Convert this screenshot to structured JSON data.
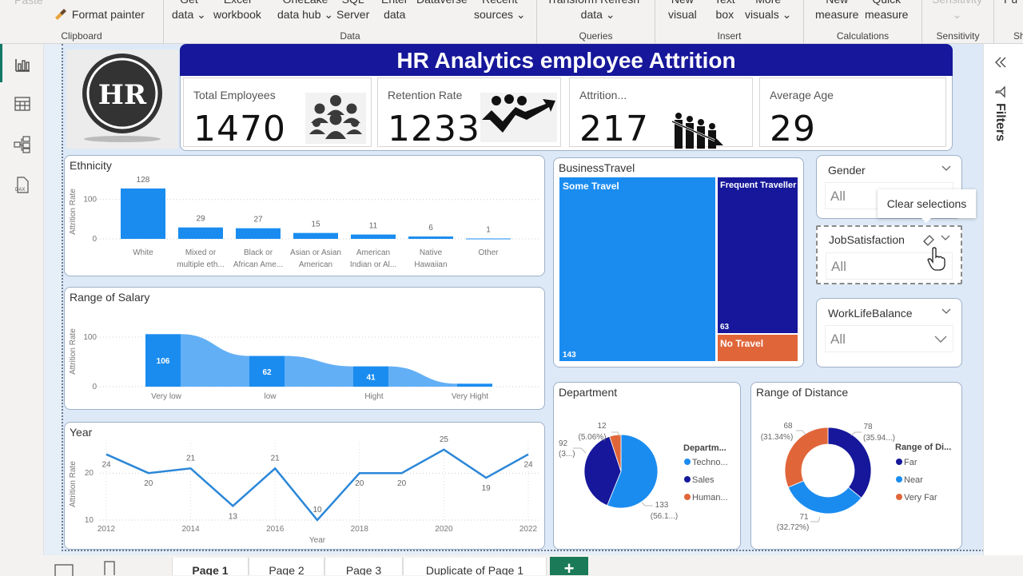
{
  "ribbon": {
    "groups": [
      {
        "label": "Clipboard",
        "buttons": [
          {
            "label": "Paste"
          },
          {
            "label": "Format painter"
          }
        ]
      },
      {
        "label": "Data",
        "buttons": [
          {
            "line1": "Get",
            "line2": "data ⌄"
          },
          {
            "line1": "Excel",
            "line2": "workbook"
          },
          {
            "line1": "OneLake",
            "line2": "data hub ⌄"
          },
          {
            "line1": "SQL",
            "line2": "Server"
          },
          {
            "line1": "Enter",
            "line2": "data"
          },
          {
            "line1": "Dataverse",
            "line2": ""
          },
          {
            "line1": "Recent",
            "line2": "sources ⌄"
          }
        ]
      },
      {
        "label": "Queries",
        "buttons": [
          {
            "line1": "Transform Refresh",
            "line2": "data ⌄"
          }
        ]
      },
      {
        "label": "Insert",
        "buttons": [
          {
            "line1": "New",
            "line2": "visual"
          },
          {
            "line1": "Text",
            "line2": "box"
          },
          {
            "line1": "More",
            "line2": "visuals ⌄"
          }
        ]
      },
      {
        "label": "Calculations",
        "buttons": [
          {
            "line1": "New",
            "line2": "measure"
          },
          {
            "line1": "Quick",
            "line2": "measure"
          }
        ]
      },
      {
        "label": "Sensitivity",
        "buttons": [
          {
            "line1": "Sensitivity",
            "line2": "⌄"
          }
        ]
      },
      {
        "label": "Sh",
        "buttons": [
          {
            "line1": "Pu",
            "line2": ""
          }
        ]
      }
    ]
  },
  "left_nav": {
    "items": [
      {
        "name": "report-view",
        "active": true
      },
      {
        "name": "table-view",
        "active": false
      },
      {
        "name": "model-view",
        "active": false
      },
      {
        "name": "dax-query-view",
        "active": false,
        "label": "DAX"
      }
    ]
  },
  "header": {
    "logo_text": "HR",
    "title": "HR Analytics employee Attrition"
  },
  "kpis": [
    {
      "label": "Total Employees",
      "value": "1470",
      "icon": "group-people-icon"
    },
    {
      "label": "Retention Rate",
      "value": "1233",
      "icon": "growth-arrow-icon"
    },
    {
      "label": "Attrition...",
      "value": "217",
      "icon": "decline-people-icon"
    },
    {
      "label": "Average Age",
      "value": "29",
      "icon": ""
    }
  ],
  "slicers": [
    {
      "title": "Gender",
      "value": "All"
    },
    {
      "title": "JobSatisfaction",
      "value": "All"
    },
    {
      "title": "WorkLifeBalance",
      "value": "All"
    }
  ],
  "tooltip": {
    "text": "Clear selections"
  },
  "filters_pane": {
    "label": "Filters"
  },
  "page_tabs": [
    {
      "label": "Page 1",
      "active": true
    },
    {
      "label": "Page 2",
      "active": false
    },
    {
      "label": "Page 3",
      "active": false
    },
    {
      "label": "Duplicate of Page 1",
      "active": false
    }
  ],
  "add_page_label": "+",
  "colors": {
    "primary_blue": "#1a8cf0",
    "navy": "#16179a",
    "orange": "#e0663a",
    "light_blue": "#62aff5"
  },
  "chart_data": [
    {
      "id": "ethnicity",
      "type": "bar",
      "title": "Ethnicity",
      "xlabel": "",
      "ylabel": "Attrition Rate",
      "categories": [
        "White",
        "Mixed or multiple eth...",
        "Black or African Ame...",
        "Asian or Asian American",
        "American Indian or Al...",
        "Native Hawaiian",
        "Other"
      ],
      "category_lines": [
        [
          "White"
        ],
        [
          "Mixed or",
          "multiple eth..."
        ],
        [
          "Black or",
          "African Ame..."
        ],
        [
          "Asian or Asian",
          "American"
        ],
        [
          "American",
          "Indian or Al..."
        ],
        [
          "Native",
          "Hawaiian"
        ],
        [
          "Other"
        ]
      ],
      "values": [
        128,
        29,
        27,
        15,
        11,
        6,
        1
      ],
      "yticks": [
        0,
        100
      ],
      "ylim": [
        0,
        140
      ],
      "grid": true
    },
    {
      "id": "salary",
      "type": "bar",
      "subtype": "ribbon",
      "title": "Range of Salary",
      "xlabel": "",
      "ylabel": "Attrition Rate",
      "categories": [
        "Very low",
        "low",
        "Hight",
        "Very Hight"
      ],
      "values": [
        106,
        62,
        41,
        6
      ],
      "data_labels": [
        "106",
        "62",
        "41",
        ""
      ],
      "yticks": [
        0,
        100
      ],
      "ylim": [
        0,
        120
      ],
      "grid": true
    },
    {
      "id": "year",
      "type": "line",
      "title": "Year",
      "xlabel": "Year",
      "ylabel": "Attrition Rate",
      "x": [
        2012,
        2013,
        2014,
        2015,
        2016,
        2017,
        2018,
        2019,
        2020,
        2021,
        2022
      ],
      "values": [
        24,
        20,
        21,
        13,
        21,
        10,
        20,
        20,
        25,
        19,
        24
      ],
      "xticks": [
        2012,
        2014,
        2016,
        2018,
        2020,
        2022
      ],
      "yticks": [
        10,
        20
      ],
      "ylim": [
        10,
        26
      ],
      "grid": true
    },
    {
      "id": "business_travel",
      "type": "treemap",
      "title": "BusinessTravel",
      "categories": [
        "Some Travel",
        "Frequent Traveller",
        "No Travel"
      ],
      "values": [
        143,
        63,
        null
      ],
      "labels_shown": [
        "143",
        "63",
        ""
      ]
    },
    {
      "id": "department",
      "type": "pie",
      "title": "Department",
      "legend_title": "Departm...",
      "categories": [
        "Techno...",
        "Sales",
        "Human..."
      ],
      "values": [
        133,
        92,
        12
      ],
      "percent_labels": [
        "(56.1...)",
        "(3...)",
        "(5.06%)"
      ],
      "legend_position": "right"
    },
    {
      "id": "distance",
      "type": "pie",
      "subtype": "donut",
      "title": "Range of Distance",
      "legend_title": "Range of Di...",
      "categories": [
        "Far",
        "Near",
        "Very Far"
      ],
      "values": [
        78,
        71,
        68
      ],
      "percent_labels": [
        "(35.94...)",
        "(32.72%)",
        "(31.34%)"
      ],
      "legend_position": "right"
    }
  ]
}
